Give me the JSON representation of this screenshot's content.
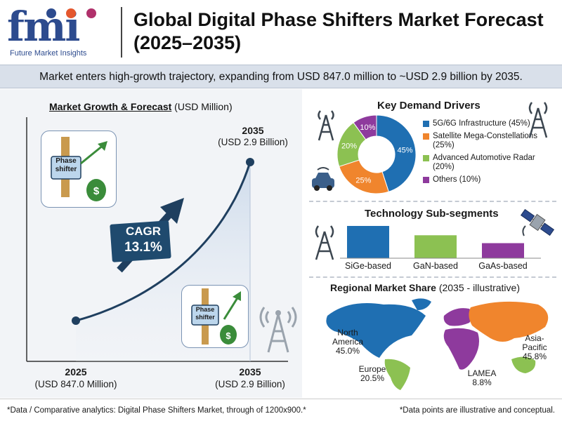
{
  "header": {
    "logo_text": "fmi",
    "logo_subtitle": "Future Market Insights",
    "title": "Global Digital Phase Shifters Market Forecast (2025–2035)"
  },
  "banner": {
    "text": "Market enters high-growth trajectory, expanding from USD 847.0 million to ~USD 2.9 billion by 2035."
  },
  "growth": {
    "title_bold": "Market Growth & Forecast",
    "title_unit": " (USD Million)",
    "start_year": "2025",
    "start_value": "(USD 847.0 Million)",
    "end_year": "2035",
    "end_value": "(USD 2.9 Billion)",
    "end_year_top": "2035",
    "end_value_top": "(USD 2.9 Billion)",
    "cagr_label": "CAGR",
    "cagr_value": "13.1%",
    "icon_text_line1": "Phase",
    "icon_text_line2": "shifter"
  },
  "demand": {
    "title": "Key Demand Drivers"
  },
  "tech": {
    "title": "Technology Sub-segments"
  },
  "regional": {
    "title_bold": "Regional Market Share",
    "title_note": " (2035 - illustrative)",
    "regions": [
      {
        "name_line1": "North",
        "name_line2": "America",
        "share": "45.0%"
      },
      {
        "name_line1": "Europe",
        "name_line2": "",
        "share": "20.5%"
      },
      {
        "name_line1": "Asia-",
        "name_line2": "Pacific",
        "share": "45.8%"
      },
      {
        "name_line1": "LAMEA",
        "name_line2": "",
        "share": "8.8%"
      }
    ]
  },
  "footer": {
    "left": "*Data / Comparative analytics: Digital Phase Shifters Market, through of 1200x900.*",
    "right": "*Data points are illustrative and conceptual."
  },
  "colors": {
    "blue": "#1f6fb2",
    "orange": "#f0852d",
    "green": "#8cc152",
    "purple": "#8e3a9d",
    "navy": "#1f3f5f"
  },
  "chart_data": [
    {
      "type": "line",
      "title": "Market Growth & Forecast (USD Million)",
      "x": [
        2025,
        2035
      ],
      "series": [
        {
          "values": [
            847.0,
            2900.0
          ]
        }
      ],
      "annotations": [
        "CAGR 13.1%"
      ]
    },
    {
      "type": "pie",
      "title": "Key Demand Drivers",
      "categories": [
        "5G/6G Infrastructure (45%)",
        "Satellite Mega-Constellations (25%)",
        "Advanced Automotive Radar (20%)",
        "Others (10%)"
      ],
      "values": [
        45,
        25,
        20,
        10
      ],
      "value_labels": [
        "45%",
        "25%",
        "20%",
        "10%"
      ],
      "colors": [
        "#1f6fb2",
        "#f0852d",
        "#8cc152",
        "#8e3a9d"
      ],
      "legend": "right"
    },
    {
      "type": "bar",
      "title": "Technology Sub-segments",
      "categories": [
        "SiGe-based",
        "GaN-based",
        "GaAs-based"
      ],
      "values": [
        45,
        32,
        21
      ],
      "colors": [
        "#1f6fb2",
        "#8cc152",
        "#8e3a9d"
      ]
    }
  ]
}
